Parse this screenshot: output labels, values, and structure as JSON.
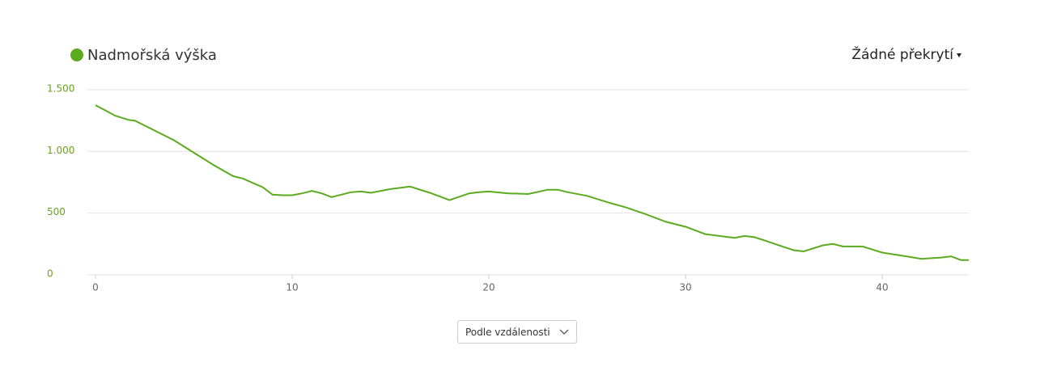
{
  "chart_data": {
    "type": "line",
    "x": [
      0,
      1,
      1.7,
      2,
      3,
      4,
      5,
      6,
      7,
      7.5,
      8,
      8.5,
      9,
      9.5,
      10,
      10.5,
      11,
      11.5,
      12,
      12.5,
      13,
      13.5,
      14,
      15,
      16,
      17,
      18,
      19,
      19.5,
      20,
      21,
      22,
      23,
      23.5,
      24,
      25,
      26,
      27,
      28,
      29,
      30,
      31,
      32,
      32.5,
      33,
      33.5,
      34,
      35,
      35.5,
      36,
      37,
      37.5,
      38,
      39,
      39.5,
      40,
      41,
      42,
      43,
      43.5,
      44,
      44.4
    ],
    "series": [
      {
        "name": "Nadmořská výška",
        "color": "#5aab1d",
        "values": [
          1375,
          1290,
          1255,
          1250,
          1170,
          1090,
          990,
          890,
          800,
          780,
          745,
          710,
          650,
          645,
          645,
          660,
          680,
          660,
          630,
          650,
          670,
          675,
          665,
          695,
          715,
          665,
          605,
          660,
          670,
          675,
          660,
          655,
          690,
          690,
          670,
          640,
          590,
          545,
          490,
          430,
          390,
          330,
          310,
          300,
          315,
          305,
          280,
          225,
          200,
          190,
          240,
          250,
          230,
          230,
          205,
          180,
          155,
          130,
          140,
          150,
          120,
          120
        ]
      }
    ],
    "xlim": [
      0,
      44.4
    ],
    "xticks": [
      0,
      10,
      20,
      30,
      40
    ],
    "ylim": [
      0,
      1500
    ],
    "yticks": [
      0,
      500,
      {
        "value": 1000,
        "label": "1.000"
      },
      {
        "value": 1500,
        "label": "1.500"
      }
    ],
    "grid": true
  },
  "controls": {
    "overlay": "Žádné překrytí",
    "sort": "Podle vzdálenosti"
  }
}
